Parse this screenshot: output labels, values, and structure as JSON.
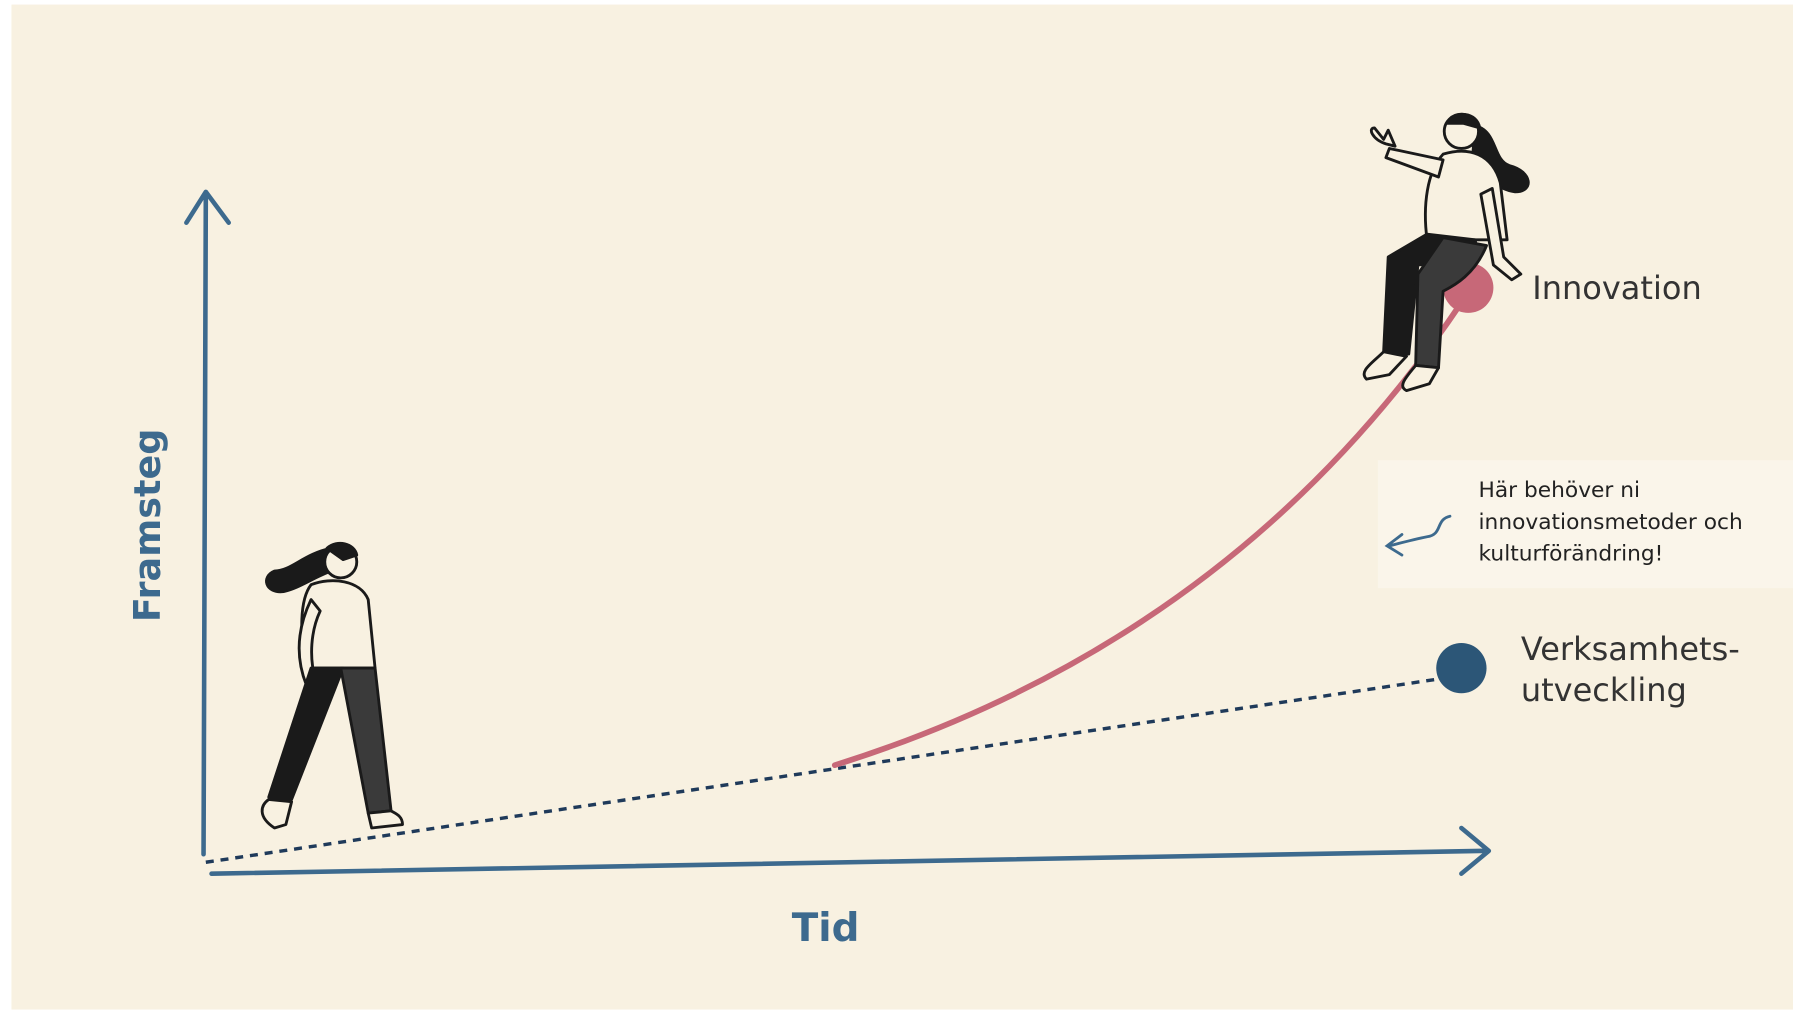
{
  "axes": {
    "y_label": "Framsteg",
    "x_label": "Tid"
  },
  "curves": {
    "innovation": "Innovation",
    "business_lines": [
      "Verksamhets-",
      "utveckling"
    ]
  },
  "annotation": {
    "lines": [
      "Här behöver ni",
      "innovationsmetoder och",
      "kulturförändring!"
    ]
  }
}
